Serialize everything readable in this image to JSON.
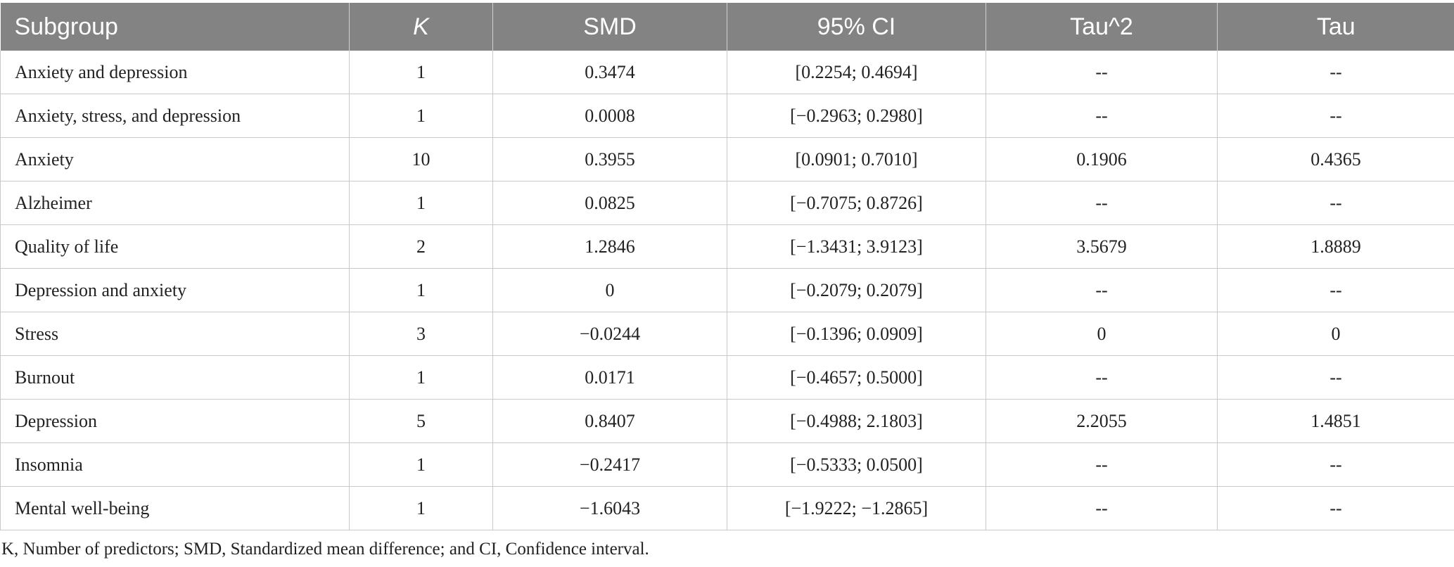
{
  "table": {
    "headers": [
      "Subgroup",
      "K",
      "SMD",
      "95% CI",
      "Tau^2",
      "Tau"
    ],
    "rows": [
      [
        "Anxiety and depression",
        "1",
        "0.3474",
        "[0.2254; 0.4694]",
        "--",
        "--"
      ],
      [
        "Anxiety, stress, and depression",
        "1",
        "0.0008",
        "[−0.2963; 0.2980]",
        "--",
        "--"
      ],
      [
        "Anxiety",
        "10",
        "0.3955",
        "[0.0901; 0.7010]",
        "0.1906",
        "0.4365"
      ],
      [
        "Alzheimer",
        "1",
        "0.0825",
        "[−0.7075; 0.8726]",
        "--",
        "--"
      ],
      [
        "Quality of life",
        "2",
        "1.2846",
        "[−1.3431; 3.9123]",
        "3.5679",
        "1.8889"
      ],
      [
        "Depression and anxiety",
        "1",
        "0",
        "[−0.2079; 0.2079]",
        "--",
        "--"
      ],
      [
        "Stress",
        "3",
        "−0.0244",
        "[−0.1396; 0.0909]",
        "0",
        "0"
      ],
      [
        "Burnout",
        "1",
        "0.0171",
        "[−0.4657; 0.5000]",
        "--",
        "--"
      ],
      [
        "Depression",
        "5",
        "0.8407",
        "[−0.4988; 2.1803]",
        "2.2055",
        "1.4851"
      ],
      [
        "Insomnia",
        "1",
        "−0.2417",
        "[−0.5333; 0.0500]",
        "--",
        "--"
      ],
      [
        "Mental well-being",
        "1",
        "−1.6043",
        "[−1.9222; −1.2865]",
        "--",
        "--"
      ]
    ]
  },
  "footnote": "K, Number of predictors; SMD, Standardized mean difference; and CI, Confidence interval.",
  "colors": {
    "header_background": "#838383",
    "header_text": "#ffffff",
    "grid_line": "#c9c9c9",
    "body_text": "#222222"
  }
}
